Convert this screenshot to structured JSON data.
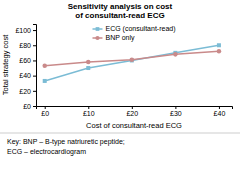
{
  "chart_data": {
    "type": "line",
    "title": "Sensitivity analysis on cost\nof consultant-read ECG",
    "x_label": "Cost of consultant-read ECG",
    "y_label": "Total strategy cost",
    "x": [
      0,
      10,
      20,
      30,
      40
    ],
    "series": [
      {
        "name": "ECG (consultant-read)",
        "color": "#7bbcd5",
        "marker": "square",
        "values": [
          33,
          50,
          60,
          70,
          80
        ]
      },
      {
        "name": "BNP only",
        "color": "#c98a8a",
        "marker": "circle",
        "values": [
          53,
          58,
          61,
          68,
          72
        ]
      }
    ],
    "xlim": [
      -2,
      43
    ],
    "xticks": [
      {
        "value": 0,
        "label": "£0"
      },
      {
        "value": 10,
        "label": "£10"
      },
      {
        "value": 20,
        "label": "£20"
      },
      {
        "value": 30,
        "label": "£30"
      },
      {
        "value": 40,
        "label": "£40"
      }
    ],
    "ylim": [
      0,
      108
    ],
    "yticks": [
      {
        "value": 0,
        "label": "£0"
      },
      {
        "value": 20,
        "label": "£20"
      },
      {
        "value": 40,
        "label": "£40"
      },
      {
        "value": 60,
        "label": "£60"
      },
      {
        "value": 80,
        "label": "£80"
      },
      {
        "value": 100,
        "label": "£100"
      }
    ],
    "grid": false,
    "legend": "upper center",
    "annotations": [
      "Key: BNP – B-type natriuretic peptide;",
      "ECG – electrocardiogram"
    ]
  }
}
